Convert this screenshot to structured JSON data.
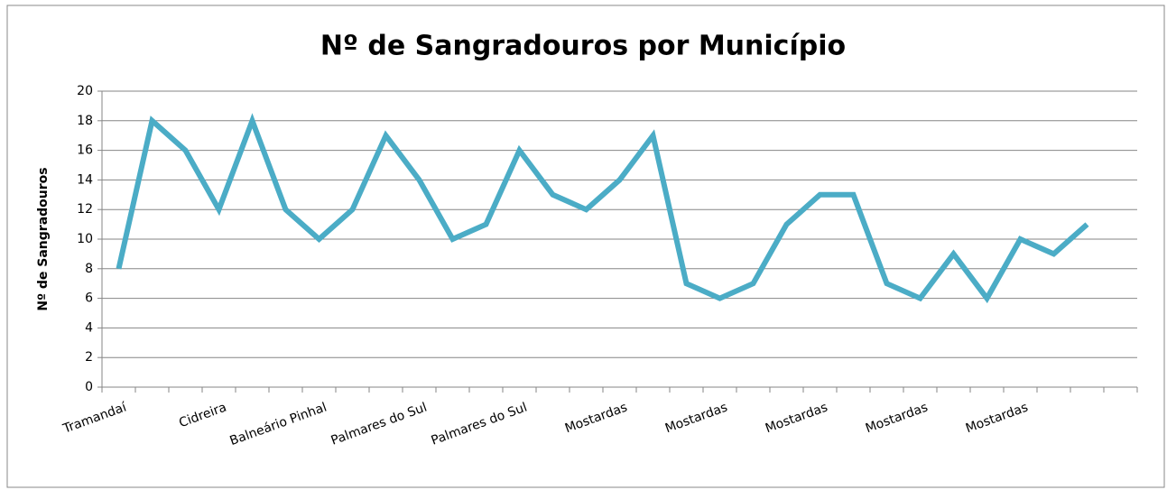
{
  "chart_data": {
    "type": "line",
    "title": "Nº de Sangradouros por Município",
    "y_label": "Nº de Sangradouros",
    "categories": [
      "Tramandaí",
      null,
      null,
      "Cidreira",
      null,
      null,
      "Balneário Pinhal",
      null,
      null,
      "Palmares do Sul",
      null,
      null,
      "Palmares do Sul",
      null,
      null,
      "Mostardas",
      null,
      null,
      "Mostardas",
      null,
      null,
      "Mostardas",
      null,
      null,
      "Mostardas",
      null,
      null,
      "Mostardas",
      null,
      null,
      null
    ],
    "series": [
      {
        "name": "Nº de Sangradouros",
        "color": "#4bacc6",
        "values": [
          8,
          18,
          16,
          12,
          18,
          12,
          10,
          12,
          17,
          14,
          10,
          11,
          16,
          13,
          12,
          14,
          17,
          7,
          6,
          7,
          11,
          13,
          13,
          7,
          6,
          9,
          6,
          10,
          9,
          11,
          null
        ]
      }
    ],
    "ylim": [
      0,
      20
    ],
    "yticks": [
      0,
      2,
      4,
      6,
      8,
      10,
      12,
      14,
      16,
      18,
      20
    ],
    "grid": true,
    "legend": false
  }
}
